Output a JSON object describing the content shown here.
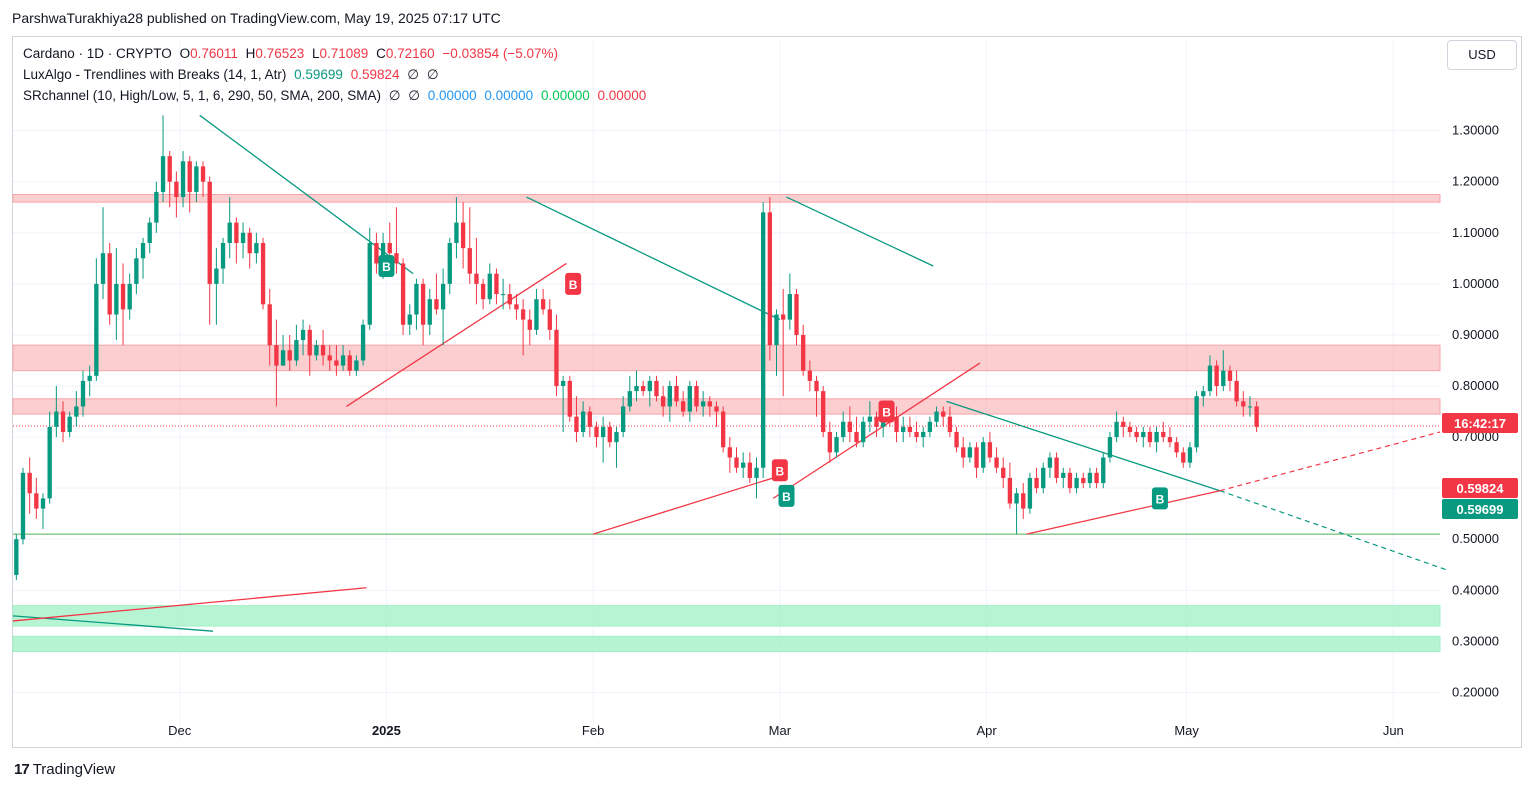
{
  "header": {
    "attribution": "ParshwaTurakhiya28 published on TradingView.com, May 19, 2025 07:17 UTC"
  },
  "legend": {
    "main": {
      "symbol": "Cardano · 1D · CRYPTO",
      "o_label": "O",
      "o_value": "0.76011",
      "h_label": "H",
      "h_value": "0.76523",
      "l_label": "L",
      "l_value": "0.71089",
      "c_label": "C",
      "c_value": "0.72160",
      "change": "−0.03854 (−5.07%)"
    },
    "luxalgo": {
      "name": "LuxAlgo - Trendlines with Breaks (14, 1, Atr)",
      "v1": "0.59699",
      "v2": "0.59824",
      "na1": "∅",
      "na2": "∅"
    },
    "srchannel": {
      "name": "SRchannel (10, High/Low, 5, 1, 6, 290, 50, SMA, 200, SMA)",
      "na1": "∅",
      "na2": "∅",
      "v1": "0.00000",
      "v2": "0.00000",
      "v3": "0.00000",
      "v4": "0.00000"
    }
  },
  "currency": "USD",
  "countdown": "16:42:17",
  "footer": {
    "logo": "17",
    "brand": "TradingView"
  },
  "colors": {
    "up": "#089981",
    "down": "#f23645",
    "trend_down": "#089981",
    "trend_up": "#f23645",
    "res_zone": "#f7a5a8",
    "sup_zone": "#9ff0c4",
    "blue": "#2196f3",
    "green_val": "#00c853",
    "red_val": "#f23645",
    "teal_val": "#089981"
  },
  "chart_data": {
    "type": "candlestick",
    "title": "Cardano · 1D · CRYPTO",
    "y_ticks": [
      "1.30000",
      "1.20000",
      "1.10000",
      "1.00000",
      "0.90000",
      "0.80000",
      "0.70000",
      "0.60000",
      "0.50000",
      "0.40000",
      "0.30000",
      "0.20000"
    ],
    "x_ticks": [
      "Dec",
      "2025",
      "Feb",
      "Mar",
      "Apr",
      "May",
      "Jun"
    ],
    "x_range": [
      "2024-11-06",
      "2025-06-08"
    ],
    "y_range": [
      0.15,
      1.36
    ],
    "price_labels": [
      {
        "value": 0.7216,
        "text": "16:42:17",
        "color": "#f23645"
      },
      {
        "value": 0.59824,
        "text": "0.59824",
        "color": "#f23645"
      },
      {
        "value": 0.59699,
        "text": "0.59699",
        "color": "#089981"
      }
    ],
    "resistance_zones": [
      [
        1.16,
        1.175
      ],
      [
        0.83,
        0.88
      ],
      [
        0.745,
        0.775
      ]
    ],
    "support_zones": [
      [
        0.33,
        0.37
      ],
      [
        0.28,
        0.31
      ]
    ],
    "support_line": 0.51,
    "trendlines": [
      {
        "color": "down",
        "x1": "2024-12-04",
        "y1": 1.33,
        "x2": "2025-01-05",
        "y2": 1.02
      },
      {
        "color": "down",
        "x1": "2025-01-22",
        "y1": 1.17,
        "x2": "2025-02-29",
        "y2": 0.93
      },
      {
        "color": "down",
        "x1": "2025-03-02",
        "y1": 1.17,
        "x2": "2025-03-24",
        "y2": 1.035
      },
      {
        "color": "down",
        "x1": "2025-03-26",
        "y1": 0.77,
        "x2": "2025-05-06",
        "y2": 0.595
      },
      {
        "color": "down",
        "x1": "2024-11-06",
        "y1": 0.35,
        "x2": "2024-12-06",
        "y2": 0.32
      },
      {
        "color": "up",
        "x1": "2024-12-26",
        "y1": 0.76,
        "x2": "2025-01-28",
        "y2": 1.04
      },
      {
        "color": "up",
        "x1": "2025-02-01",
        "y1": 0.51,
        "x2": "2025-02-28",
        "y2": 0.62
      },
      {
        "color": "up",
        "x1": "2025-02-28",
        "y1": 0.58,
        "x2": "2025-03-31",
        "y2": 0.845
      },
      {
        "color": "up",
        "x1": "2025-04-07",
        "y1": 0.51,
        "x2": "2025-05-06",
        "y2": 0.595
      },
      {
        "color": "up",
        "x1": "2024-11-06",
        "y1": 0.34,
        "x2": "2024-12-29",
        "y2": 0.405
      }
    ],
    "dashed_lines": [
      {
        "color": "down",
        "x1": "2025-05-06",
        "y1": 0.595,
        "x2": "2025-06-09",
        "y2": 0.44
      },
      {
        "color": "up",
        "x1": "2025-05-06",
        "y1": 0.595,
        "x2": "2025-06-08",
        "y2": 0.71
      }
    ],
    "break_markers": [
      {
        "date": "2025-01-01",
        "price": 1.035,
        "label": "B",
        "side": "up"
      },
      {
        "date": "2025-01-29",
        "price": 1.0,
        "label": "B",
        "side": "down"
      },
      {
        "date": "2025-03-01",
        "price": 0.635,
        "label": "B",
        "side": "down"
      },
      {
        "date": "2025-03-02",
        "price": 0.585,
        "label": "B",
        "side": "up"
      },
      {
        "date": "2025-03-17",
        "price": 0.75,
        "label": "B",
        "side": "down"
      },
      {
        "date": "2025-04-27",
        "price": 0.58,
        "label": "B",
        "side": "up"
      }
    ],
    "candles_ohlc": [
      [
        0.43,
        0.51,
        0.42,
        0.5
      ],
      [
        0.5,
        0.64,
        0.49,
        0.63
      ],
      [
        0.63,
        0.66,
        0.55,
        0.59
      ],
      [
        0.59,
        0.62,
        0.54,
        0.56
      ],
      [
        0.56,
        0.59,
        0.52,
        0.58
      ],
      [
        0.58,
        0.75,
        0.57,
        0.72
      ],
      [
        0.72,
        0.8,
        0.7,
        0.75
      ],
      [
        0.75,
        0.77,
        0.69,
        0.71
      ],
      [
        0.71,
        0.75,
        0.7,
        0.74
      ],
      [
        0.74,
        0.79,
        0.72,
        0.76
      ],
      [
        0.76,
        0.83,
        0.74,
        0.81
      ],
      [
        0.81,
        0.84,
        0.78,
        0.82
      ],
      [
        0.82,
        1.05,
        0.81,
        1.0
      ],
      [
        1.0,
        1.15,
        0.97,
        1.06
      ],
      [
        1.06,
        1.08,
        0.92,
        0.94
      ],
      [
        0.94,
        1.07,
        0.89,
        1.0
      ],
      [
        1.0,
        1.04,
        0.88,
        0.95
      ],
      [
        0.95,
        1.02,
        0.93,
        1.0
      ],
      [
        1.0,
        1.07,
        0.98,
        1.05
      ],
      [
        1.05,
        1.09,
        1.01,
        1.08
      ],
      [
        1.08,
        1.13,
        1.06,
        1.12
      ],
      [
        1.12,
        1.2,
        1.1,
        1.18
      ],
      [
        1.18,
        1.33,
        1.16,
        1.25
      ],
      [
        1.25,
        1.26,
        1.15,
        1.2
      ],
      [
        1.2,
        1.22,
        1.13,
        1.17
      ],
      [
        1.17,
        1.26,
        1.15,
        1.24
      ],
      [
        1.24,
        1.25,
        1.14,
        1.18
      ],
      [
        1.18,
        1.24,
        1.16,
        1.23
      ],
      [
        1.23,
        1.24,
        1.17,
        1.2
      ],
      [
        1.2,
        1.21,
        0.92,
        1.0
      ],
      [
        1.0,
        1.07,
        0.92,
        1.03
      ],
      [
        1.03,
        1.09,
        1.0,
        1.08
      ],
      [
        1.08,
        1.17,
        1.05,
        1.12
      ],
      [
        1.12,
        1.13,
        1.04,
        1.08
      ],
      [
        1.08,
        1.12,
        1.05,
        1.1
      ],
      [
        1.1,
        1.11,
        1.03,
        1.06
      ],
      [
        1.06,
        1.1,
        1.04,
        1.08
      ],
      [
        1.08,
        1.09,
        0.95,
        0.96
      ],
      [
        0.96,
        0.99,
        0.84,
        0.88
      ],
      [
        0.88,
        0.93,
        0.76,
        0.84
      ],
      [
        0.84,
        0.9,
        0.84,
        0.87
      ],
      [
        0.87,
        0.9,
        0.83,
        0.85
      ],
      [
        0.85,
        0.92,
        0.84,
        0.89
      ],
      [
        0.89,
        0.93,
        0.86,
        0.91
      ],
      [
        0.91,
        0.92,
        0.82,
        0.86
      ],
      [
        0.86,
        0.89,
        0.85,
        0.88
      ],
      [
        0.88,
        0.91,
        0.84,
        0.86
      ],
      [
        0.86,
        0.88,
        0.83,
        0.85
      ],
      [
        0.85,
        0.88,
        0.82,
        0.84
      ],
      [
        0.84,
        0.88,
        0.83,
        0.86
      ],
      [
        0.86,
        0.87,
        0.82,
        0.83
      ],
      [
        0.83,
        0.86,
        0.82,
        0.85
      ],
      [
        0.85,
        0.93,
        0.84,
        0.92
      ],
      [
        0.92,
        1.11,
        0.91,
        1.08
      ],
      [
        1.08,
        1.1,
        1.02,
        1.04
      ],
      [
        1.04,
        1.1,
        1.01,
        1.08
      ],
      [
        1.08,
        1.12,
        1.05,
        1.06
      ],
      [
        1.06,
        1.15,
        1.02,
        1.04
      ],
      [
        1.04,
        1.05,
        0.9,
        0.92
      ],
      [
        0.92,
        0.96,
        0.9,
        0.94
      ],
      [
        0.94,
        1.01,
        0.91,
        1.0
      ],
      [
        1.0,
        1.01,
        0.88,
        0.92
      ],
      [
        0.92,
        0.99,
        0.9,
        0.97
      ],
      [
        0.97,
        1.02,
        0.94,
        0.95
      ],
      [
        0.95,
        1.03,
        0.88,
        1.0
      ],
      [
        1.0,
        1.09,
        0.98,
        1.08
      ],
      [
        1.08,
        1.17,
        1.05,
        1.12
      ],
      [
        1.12,
        1.16,
        1.03,
        1.07
      ],
      [
        1.07,
        1.15,
        1.0,
        1.02
      ],
      [
        1.02,
        1.09,
        0.96,
        1.0
      ],
      [
        1.0,
        1.01,
        0.95,
        0.97
      ],
      [
        0.97,
        1.04,
        0.96,
        1.02
      ],
      [
        1.02,
        1.03,
        0.96,
        0.98
      ],
      [
        0.98,
        1.01,
        0.95,
        0.98
      ],
      [
        0.98,
        1.0,
        0.95,
        0.96
      ],
      [
        0.96,
        0.98,
        0.93,
        0.95
      ],
      [
        0.95,
        0.97,
        0.86,
        0.93
      ],
      [
        0.93,
        0.95,
        0.88,
        0.91
      ],
      [
        0.91,
        0.99,
        0.9,
        0.97
      ],
      [
        0.97,
        0.99,
        0.94,
        0.95
      ],
      [
        0.95,
        0.97,
        0.89,
        0.91
      ],
      [
        0.91,
        0.94,
        0.78,
        0.8
      ],
      [
        0.8,
        0.82,
        0.71,
        0.81
      ],
      [
        0.81,
        0.82,
        0.73,
        0.74
      ],
      [
        0.74,
        0.78,
        0.69,
        0.71
      ],
      [
        0.71,
        0.77,
        0.7,
        0.75
      ],
      [
        0.75,
        0.76,
        0.7,
        0.72
      ],
      [
        0.72,
        0.73,
        0.68,
        0.7
      ],
      [
        0.7,
        0.74,
        0.65,
        0.72
      ],
      [
        0.72,
        0.73,
        0.68,
        0.69
      ],
      [
        0.69,
        0.72,
        0.64,
        0.71
      ],
      [
        0.71,
        0.78,
        0.7,
        0.76
      ],
      [
        0.76,
        0.82,
        0.75,
        0.79
      ],
      [
        0.79,
        0.83,
        0.77,
        0.8
      ],
      [
        0.8,
        0.81,
        0.78,
        0.79
      ],
      [
        0.79,
        0.82,
        0.76,
        0.81
      ],
      [
        0.81,
        0.82,
        0.77,
        0.78
      ],
      [
        0.78,
        0.8,
        0.74,
        0.76
      ],
      [
        0.76,
        0.81,
        0.73,
        0.8
      ],
      [
        0.8,
        0.82,
        0.76,
        0.77
      ],
      [
        0.77,
        0.79,
        0.74,
        0.75
      ],
      [
        0.75,
        0.81,
        0.73,
        0.8
      ],
      [
        0.8,
        0.81,
        0.75,
        0.76
      ],
      [
        0.76,
        0.79,
        0.74,
        0.77
      ],
      [
        0.77,
        0.78,
        0.74,
        0.76
      ],
      [
        0.76,
        0.77,
        0.72,
        0.75
      ],
      [
        0.75,
        0.76,
        0.67,
        0.68
      ],
      [
        0.68,
        0.7,
        0.63,
        0.66
      ],
      [
        0.66,
        0.68,
        0.63,
        0.64
      ],
      [
        0.64,
        0.67,
        0.62,
        0.65
      ],
      [
        0.65,
        0.67,
        0.61,
        0.62
      ],
      [
        0.62,
        0.66,
        0.58,
        0.64
      ],
      [
        0.64,
        1.16,
        0.62,
        1.14
      ],
      [
        1.14,
        1.17,
        0.85,
        0.88
      ],
      [
        0.88,
        0.95,
        0.82,
        0.94
      ],
      [
        0.94,
        0.99,
        0.78,
        0.93
      ],
      [
        0.93,
        1.02,
        0.91,
        0.98
      ],
      [
        0.98,
        0.99,
        0.88,
        0.9
      ],
      [
        0.9,
        0.92,
        0.82,
        0.83
      ],
      [
        0.83,
        0.85,
        0.79,
        0.81
      ],
      [
        0.81,
        0.82,
        0.74,
        0.79
      ],
      [
        0.79,
        0.8,
        0.7,
        0.71
      ],
      [
        0.71,
        0.73,
        0.65,
        0.67
      ],
      [
        0.67,
        0.71,
        0.66,
        0.7
      ],
      [
        0.7,
        0.75,
        0.69,
        0.73
      ],
      [
        0.73,
        0.76,
        0.69,
        0.71
      ],
      [
        0.71,
        0.74,
        0.68,
        0.69
      ],
      [
        0.69,
        0.74,
        0.68,
        0.73
      ],
      [
        0.73,
        0.77,
        0.71,
        0.74
      ],
      [
        0.74,
        0.75,
        0.7,
        0.72
      ],
      [
        0.72,
        0.76,
        0.7,
        0.75
      ],
      [
        0.75,
        0.77,
        0.72,
        0.74
      ],
      [
        0.74,
        0.76,
        0.69,
        0.71
      ],
      [
        0.71,
        0.74,
        0.69,
        0.72
      ],
      [
        0.72,
        0.74,
        0.7,
        0.71
      ],
      [
        0.71,
        0.73,
        0.69,
        0.7
      ],
      [
        0.7,
        0.72,
        0.68,
        0.71
      ],
      [
        0.71,
        0.74,
        0.7,
        0.73
      ],
      [
        0.73,
        0.76,
        0.72,
        0.75
      ],
      [
        0.75,
        0.76,
        0.72,
        0.74
      ],
      [
        0.74,
        0.76,
        0.7,
        0.71
      ],
      [
        0.71,
        0.72,
        0.67,
        0.68
      ],
      [
        0.68,
        0.7,
        0.64,
        0.66
      ],
      [
        0.66,
        0.69,
        0.65,
        0.68
      ],
      [
        0.68,
        0.69,
        0.62,
        0.64
      ],
      [
        0.64,
        0.7,
        0.63,
        0.69
      ],
      [
        0.69,
        0.71,
        0.65,
        0.66
      ],
      [
        0.66,
        0.68,
        0.63,
        0.64
      ],
      [
        0.64,
        0.66,
        0.6,
        0.62
      ],
      [
        0.62,
        0.65,
        0.56,
        0.57
      ],
      [
        0.57,
        0.6,
        0.51,
        0.59
      ],
      [
        0.59,
        0.61,
        0.54,
        0.56
      ],
      [
        0.56,
        0.63,
        0.55,
        0.62
      ],
      [
        0.62,
        0.64,
        0.59,
        0.6
      ],
      [
        0.6,
        0.65,
        0.59,
        0.64
      ],
      [
        0.64,
        0.67,
        0.62,
        0.66
      ],
      [
        0.66,
        0.67,
        0.61,
        0.62
      ],
      [
        0.62,
        0.64,
        0.6,
        0.63
      ],
      [
        0.63,
        0.64,
        0.59,
        0.6
      ],
      [
        0.6,
        0.63,
        0.59,
        0.62
      ],
      [
        0.62,
        0.63,
        0.6,
        0.61
      ],
      [
        0.61,
        0.64,
        0.6,
        0.63
      ],
      [
        0.63,
        0.64,
        0.6,
        0.61
      ],
      [
        0.61,
        0.67,
        0.6,
        0.66
      ],
      [
        0.66,
        0.71,
        0.65,
        0.7
      ],
      [
        0.7,
        0.75,
        0.69,
        0.73
      ],
      [
        0.73,
        0.74,
        0.7,
        0.72
      ],
      [
        0.72,
        0.73,
        0.7,
        0.71
      ],
      [
        0.71,
        0.72,
        0.69,
        0.7
      ],
      [
        0.7,
        0.72,
        0.68,
        0.71
      ],
      [
        0.71,
        0.72,
        0.68,
        0.69
      ],
      [
        0.69,
        0.72,
        0.67,
        0.71
      ],
      [
        0.71,
        0.73,
        0.69,
        0.7
      ],
      [
        0.7,
        0.72,
        0.68,
        0.69
      ],
      [
        0.69,
        0.7,
        0.66,
        0.67
      ],
      [
        0.67,
        0.68,
        0.64,
        0.65
      ],
      [
        0.65,
        0.69,
        0.64,
        0.68
      ],
      [
        0.68,
        0.79,
        0.67,
        0.78
      ],
      [
        0.78,
        0.8,
        0.76,
        0.79
      ],
      [
        0.79,
        0.86,
        0.78,
        0.84
      ],
      [
        0.84,
        0.85,
        0.78,
        0.8
      ],
      [
        0.8,
        0.87,
        0.79,
        0.83
      ],
      [
        0.83,
        0.84,
        0.79,
        0.81
      ],
      [
        0.81,
        0.83,
        0.76,
        0.77
      ],
      [
        0.77,
        0.79,
        0.74,
        0.76
      ],
      [
        0.76,
        0.78,
        0.74,
        0.76
      ],
      [
        0.76,
        0.77,
        0.71,
        0.72
      ]
    ]
  }
}
